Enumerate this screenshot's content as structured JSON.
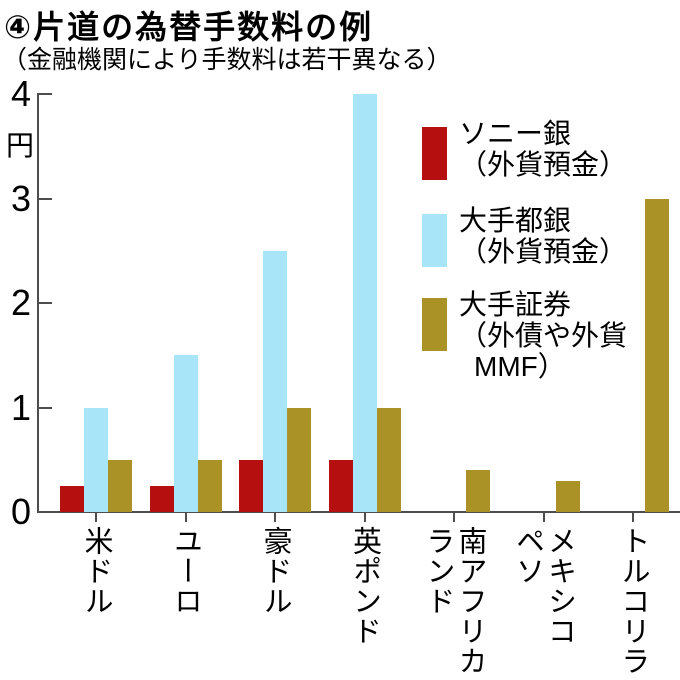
{
  "title": "④片道の為替手数料の例",
  "subtitle": "（金融機関により手数料は若干異なる）",
  "chart_data": {
    "type": "bar",
    "title": "④片道の為替手数料の例",
    "subtitle": "（金融機関により手数料は若干異なる）",
    "ylabel": "円",
    "xlabel": "",
    "ylim": [
      0,
      4
    ],
    "yticks": [
      0,
      1,
      2,
      3,
      4
    ],
    "grid": false,
    "legend_position": "upper right",
    "categories": [
      "米ドル",
      "ユーロ",
      "豪ドル",
      "英ポンド",
      "南アフリカ\nランド",
      "メキシコ\nペソ",
      "トルコリラ"
    ],
    "series": [
      {
        "name": "ソニー銀（外貨預金）",
        "color": "#b50f10",
        "values": [
          0.25,
          0.25,
          0.5,
          0.5,
          null,
          null,
          null
        ]
      },
      {
        "name": "大手都銀（外貨預金）",
        "color": "#a9e5f9",
        "values": [
          1.0,
          1.5,
          2.5,
          4.0,
          null,
          null,
          null
        ]
      },
      {
        "name": "大手証券（外債や外貨MMF）",
        "color": "#ab9226",
        "values": [
          0.5,
          0.5,
          1.0,
          1.0,
          0.4,
          0.3,
          3.0
        ]
      }
    ]
  },
  "legend": {
    "items": [
      {
        "color": "#b50f10",
        "lines": [
          "ソニー銀",
          "（外貨預金）",
          ""
        ]
      },
      {
        "color": "#a9e5f9",
        "lines": [
          "大手都銀",
          "（外貨預金）",
          ""
        ]
      },
      {
        "color": "#ab9226",
        "lines": [
          "大手証券",
          "（外債や外貨",
          "MMF）"
        ]
      }
    ]
  },
  "colors": {
    "axis": "#4d4d4d",
    "text": "#000000",
    "background": "#ffffff",
    "sony_bank_red": "#b50f10",
    "city_bank_blue": "#a9e5f9",
    "securities_gold": "#ab9226"
  }
}
